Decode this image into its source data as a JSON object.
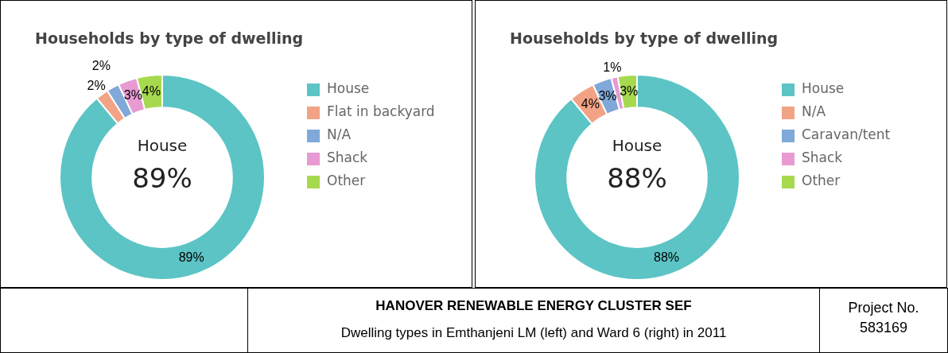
{
  "chart_data": [
    {
      "type": "donut",
      "title": "Households by type of dwelling",
      "categories": [
        "House",
        "Flat in backyard",
        "N/A",
        "Shack",
        "Other"
      ],
      "values": [
        89,
        2,
        2,
        3,
        4
      ],
      "value_labels": [
        "89%",
        "2%",
        "2%",
        "3%",
        "4%"
      ],
      "colors": [
        "#5cc4c4",
        "#f2a386",
        "#80a8d8",
        "#e89ad2",
        "#a6d94e"
      ],
      "legend": "right",
      "annotations": [
        "House",
        "89%"
      ]
    },
    {
      "type": "donut",
      "title": "Households by type of dwelling",
      "categories": [
        "House",
        "N/A",
        "Caravan/tent",
        "Shack",
        "Other"
      ],
      "values": [
        88,
        4,
        3,
        1,
        3
      ],
      "value_labels": [
        "88%",
        "4%",
        "3%",
        "1%",
        "3%"
      ],
      "colors": [
        "#5cc4c4",
        "#f2a386",
        "#80a8d8",
        "#e89ad2",
        "#a6d94e"
      ],
      "legend": "right",
      "annotations": [
        "House",
        "88%"
      ]
    },
    {
      "type": "other",
      "title": "HANOVER RENEWABLE ENERGY CLUSTER SEF",
      "annotations": [
        "Dwelling types in Emthanjeni LM (left) and Ward 6 (right) in 2011",
        "Project No.",
        "583169"
      ]
    }
  ]
}
